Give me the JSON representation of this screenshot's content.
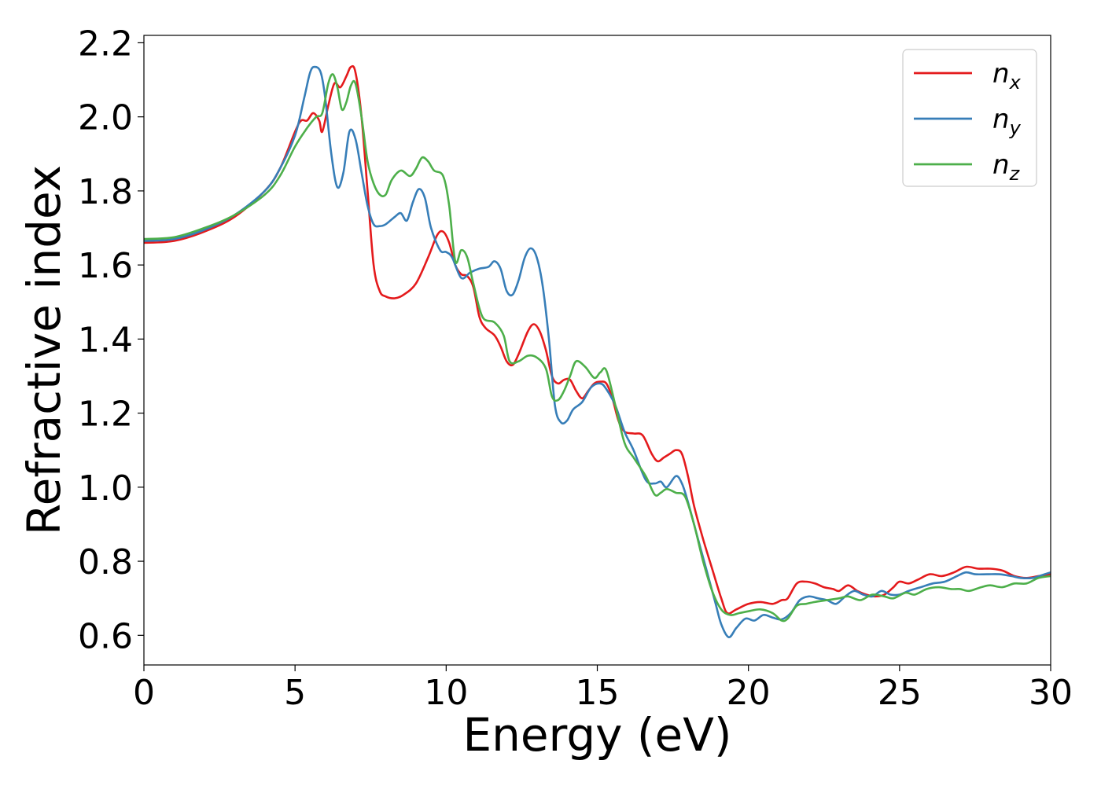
{
  "chart_data": {
    "type": "line",
    "title": "",
    "xlabel": "Energy (eV)",
    "ylabel": "Refractive index",
    "xlim": [
      0,
      30
    ],
    "ylim": [
      0.52,
      2.22
    ],
    "xticks": [
      0,
      5,
      10,
      15,
      20,
      25,
      30
    ],
    "xtick_labels": [
      "0",
      "5",
      "10",
      "15",
      "20",
      "25",
      "30"
    ],
    "yticks": [
      0.6,
      0.8,
      1.0,
      1.2,
      1.4,
      1.6,
      1.8,
      2.0,
      2.2
    ],
    "ytick_labels": [
      "0.6",
      "0.8",
      "1.0",
      "1.2",
      "1.4",
      "1.6",
      "1.8",
      "2.0",
      "2.2"
    ],
    "grid": false,
    "legend_position": "top-right",
    "series": [
      {
        "name": "n_x",
        "label_base": "n",
        "label_sub": "x",
        "color": "#e41a1c",
        "points": [
          [
            0,
            1.66
          ],
          [
            1,
            1.665
          ],
          [
            2,
            1.69
          ],
          [
            3,
            1.73
          ],
          [
            4,
            1.8
          ],
          [
            4.5,
            1.86
          ],
          [
            5,
            1.96
          ],
          [
            5.2,
            1.99
          ],
          [
            5.4,
            1.99
          ],
          [
            5.6,
            2.01
          ],
          [
            5.8,
            1.99
          ],
          [
            5.9,
            1.96
          ],
          [
            6.1,
            2.03
          ],
          [
            6.3,
            2.09
          ],
          [
            6.5,
            2.08
          ],
          [
            6.7,
            2.11
          ],
          [
            6.85,
            2.135
          ],
          [
            7,
            2.12
          ],
          [
            7.2,
            2.0
          ],
          [
            7.4,
            1.8
          ],
          [
            7.6,
            1.6
          ],
          [
            7.8,
            1.53
          ],
          [
            8.0,
            1.515
          ],
          [
            8.3,
            1.51
          ],
          [
            8.6,
            1.52
          ],
          [
            9.0,
            1.55
          ],
          [
            9.4,
            1.62
          ],
          [
            9.7,
            1.68
          ],
          [
            9.9,
            1.69
          ],
          [
            10.1,
            1.66
          ],
          [
            10.3,
            1.6
          ],
          [
            10.5,
            1.575
          ],
          [
            10.7,
            1.57
          ],
          [
            10.9,
            1.54
          ],
          [
            11.1,
            1.46
          ],
          [
            11.3,
            1.43
          ],
          [
            11.6,
            1.41
          ],
          [
            11.8,
            1.38
          ],
          [
            12.0,
            1.34
          ],
          [
            12.2,
            1.33
          ],
          [
            12.4,
            1.36
          ],
          [
            12.7,
            1.42
          ],
          [
            12.9,
            1.44
          ],
          [
            13.1,
            1.42
          ],
          [
            13.3,
            1.37
          ],
          [
            13.5,
            1.3
          ],
          [
            13.7,
            1.28
          ],
          [
            13.9,
            1.29
          ],
          [
            14.1,
            1.29
          ],
          [
            14.3,
            1.26
          ],
          [
            14.5,
            1.24
          ],
          [
            14.7,
            1.26
          ],
          [
            14.9,
            1.28
          ],
          [
            15.1,
            1.285
          ],
          [
            15.3,
            1.28
          ],
          [
            15.5,
            1.24
          ],
          [
            15.7,
            1.18
          ],
          [
            15.9,
            1.15
          ],
          [
            16.2,
            1.145
          ],
          [
            16.5,
            1.14
          ],
          [
            16.8,
            1.09
          ],
          [
            17.0,
            1.07
          ],
          [
            17.2,
            1.08
          ],
          [
            17.4,
            1.09
          ],
          [
            17.6,
            1.1
          ],
          [
            17.8,
            1.09
          ],
          [
            18.0,
            1.03
          ],
          [
            18.2,
            0.95
          ],
          [
            18.5,
            0.86
          ],
          [
            18.8,
            0.78
          ],
          [
            19.1,
            0.7
          ],
          [
            19.3,
            0.66
          ],
          [
            19.6,
            0.67
          ],
          [
            20.0,
            0.685
          ],
          [
            20.4,
            0.69
          ],
          [
            20.8,
            0.685
          ],
          [
            21.1,
            0.695
          ],
          [
            21.3,
            0.7
          ],
          [
            21.6,
            0.74
          ],
          [
            21.9,
            0.745
          ],
          [
            22.2,
            0.74
          ],
          [
            22.5,
            0.73
          ],
          [
            22.8,
            0.725
          ],
          [
            23.0,
            0.72
          ],
          [
            23.3,
            0.735
          ],
          [
            23.6,
            0.72
          ],
          [
            23.9,
            0.71
          ],
          [
            24.2,
            0.705
          ],
          [
            24.5,
            0.71
          ],
          [
            24.8,
            0.73
          ],
          [
            25.0,
            0.745
          ],
          [
            25.3,
            0.74
          ],
          [
            25.6,
            0.75
          ],
          [
            26.0,
            0.765
          ],
          [
            26.4,
            0.76
          ],
          [
            26.8,
            0.77
          ],
          [
            27.2,
            0.785
          ],
          [
            27.6,
            0.78
          ],
          [
            28.0,
            0.78
          ],
          [
            28.4,
            0.775
          ],
          [
            28.8,
            0.76
          ],
          [
            29.2,
            0.755
          ],
          [
            29.6,
            0.76
          ],
          [
            30,
            0.765
          ]
        ]
      },
      {
        "name": "n_y",
        "label_base": "n",
        "label_sub": "y",
        "color": "#377eb8",
        "points": [
          [
            0,
            1.665
          ],
          [
            1,
            1.67
          ],
          [
            2,
            1.695
          ],
          [
            3,
            1.735
          ],
          [
            4,
            1.8
          ],
          [
            4.5,
            1.86
          ],
          [
            5,
            1.95
          ],
          [
            5.3,
            2.05
          ],
          [
            5.5,
            2.12
          ],
          [
            5.65,
            2.135
          ],
          [
            5.85,
            2.12
          ],
          [
            6.0,
            2.05
          ],
          [
            6.2,
            1.9
          ],
          [
            6.4,
            1.81
          ],
          [
            6.6,
            1.85
          ],
          [
            6.8,
            1.96
          ],
          [
            7.0,
            1.94
          ],
          [
            7.2,
            1.85
          ],
          [
            7.4,
            1.76
          ],
          [
            7.6,
            1.71
          ],
          [
            7.8,
            1.705
          ],
          [
            8.0,
            1.71
          ],
          [
            8.3,
            1.73
          ],
          [
            8.5,
            1.74
          ],
          [
            8.7,
            1.72
          ],
          [
            8.9,
            1.77
          ],
          [
            9.1,
            1.805
          ],
          [
            9.3,
            1.78
          ],
          [
            9.5,
            1.7
          ],
          [
            9.8,
            1.64
          ],
          [
            10.0,
            1.635
          ],
          [
            10.2,
            1.62
          ],
          [
            10.5,
            1.565
          ],
          [
            10.8,
            1.58
          ],
          [
            11.1,
            1.59
          ],
          [
            11.4,
            1.595
          ],
          [
            11.6,
            1.61
          ],
          [
            11.8,
            1.59
          ],
          [
            12.0,
            1.53
          ],
          [
            12.2,
            1.52
          ],
          [
            12.4,
            1.56
          ],
          [
            12.6,
            1.62
          ],
          [
            12.8,
            1.645
          ],
          [
            13.0,
            1.62
          ],
          [
            13.2,
            1.54
          ],
          [
            13.4,
            1.4
          ],
          [
            13.6,
            1.22
          ],
          [
            13.8,
            1.175
          ],
          [
            14.0,
            1.18
          ],
          [
            14.2,
            1.21
          ],
          [
            14.5,
            1.23
          ],
          [
            14.8,
            1.27
          ],
          [
            15.1,
            1.28
          ],
          [
            15.3,
            1.265
          ],
          [
            15.6,
            1.22
          ],
          [
            15.9,
            1.15
          ],
          [
            16.2,
            1.1
          ],
          [
            16.6,
            1.02
          ],
          [
            16.9,
            1.01
          ],
          [
            17.1,
            1.015
          ],
          [
            17.3,
            1.0
          ],
          [
            17.6,
            1.03
          ],
          [
            17.8,
            1.01
          ],
          [
            18.0,
            0.96
          ],
          [
            18.3,
            0.87
          ],
          [
            18.6,
            0.78
          ],
          [
            18.9,
            0.69
          ],
          [
            19.1,
            0.63
          ],
          [
            19.35,
            0.595
          ],
          [
            19.6,
            0.62
          ],
          [
            19.9,
            0.645
          ],
          [
            20.2,
            0.64
          ],
          [
            20.5,
            0.655
          ],
          [
            20.8,
            0.648
          ],
          [
            21.1,
            0.643
          ],
          [
            21.4,
            0.66
          ],
          [
            21.7,
            0.695
          ],
          [
            22.0,
            0.705
          ],
          [
            22.3,
            0.7
          ],
          [
            22.6,
            0.695
          ],
          [
            22.9,
            0.685
          ],
          [
            23.2,
            0.705
          ],
          [
            23.5,
            0.72
          ],
          [
            23.8,
            0.71
          ],
          [
            24.1,
            0.705
          ],
          [
            24.4,
            0.72
          ],
          [
            24.7,
            0.71
          ],
          [
            25.0,
            0.71
          ],
          [
            25.3,
            0.72
          ],
          [
            25.7,
            0.73
          ],
          [
            26.1,
            0.74
          ],
          [
            26.5,
            0.745
          ],
          [
            26.9,
            0.76
          ],
          [
            27.2,
            0.77
          ],
          [
            27.5,
            0.765
          ],
          [
            27.9,
            0.765
          ],
          [
            28.3,
            0.765
          ],
          [
            28.7,
            0.76
          ],
          [
            29.0,
            0.755
          ],
          [
            29.4,
            0.755
          ],
          [
            29.8,
            0.765
          ],
          [
            30,
            0.77
          ]
        ]
      },
      {
        "name": "n_z",
        "label_base": "n",
        "label_sub": "z",
        "color": "#4daf4a",
        "points": [
          [
            0,
            1.67
          ],
          [
            1,
            1.675
          ],
          [
            2,
            1.7
          ],
          [
            3,
            1.735
          ],
          [
            4,
            1.79
          ],
          [
            4.5,
            1.84
          ],
          [
            5,
            1.92
          ],
          [
            5.4,
            1.97
          ],
          [
            5.7,
            2.0
          ],
          [
            5.9,
            2.01
          ],
          [
            6.1,
            2.09
          ],
          [
            6.25,
            2.115
          ],
          [
            6.4,
            2.08
          ],
          [
            6.55,
            2.02
          ],
          [
            6.7,
            2.04
          ],
          [
            6.85,
            2.085
          ],
          [
            7.0,
            2.09
          ],
          [
            7.2,
            2.0
          ],
          [
            7.4,
            1.88
          ],
          [
            7.6,
            1.82
          ],
          [
            7.8,
            1.79
          ],
          [
            8.0,
            1.79
          ],
          [
            8.2,
            1.83
          ],
          [
            8.5,
            1.855
          ],
          [
            8.8,
            1.84
          ],
          [
            9.0,
            1.86
          ],
          [
            9.2,
            1.89
          ],
          [
            9.4,
            1.88
          ],
          [
            9.6,
            1.855
          ],
          [
            9.9,
            1.84
          ],
          [
            10.1,
            1.76
          ],
          [
            10.3,
            1.61
          ],
          [
            10.5,
            1.64
          ],
          [
            10.7,
            1.62
          ],
          [
            10.9,
            1.55
          ],
          [
            11.2,
            1.46
          ],
          [
            11.6,
            1.445
          ],
          [
            11.9,
            1.41
          ],
          [
            12.1,
            1.34
          ],
          [
            12.4,
            1.34
          ],
          [
            12.7,
            1.355
          ],
          [
            13.0,
            1.35
          ],
          [
            13.3,
            1.32
          ],
          [
            13.5,
            1.245
          ],
          [
            13.7,
            1.235
          ],
          [
            13.9,
            1.26
          ],
          [
            14.1,
            1.3
          ],
          [
            14.3,
            1.34
          ],
          [
            14.6,
            1.325
          ],
          [
            14.9,
            1.295
          ],
          [
            15.1,
            1.31
          ],
          [
            15.3,
            1.315
          ],
          [
            15.6,
            1.22
          ],
          [
            15.9,
            1.12
          ],
          [
            16.2,
            1.08
          ],
          [
            16.6,
            1.03
          ],
          [
            16.9,
            0.98
          ],
          [
            17.1,
            0.985
          ],
          [
            17.3,
            0.995
          ],
          [
            17.6,
            0.985
          ],
          [
            17.9,
            0.975
          ],
          [
            18.2,
            0.9
          ],
          [
            18.5,
            0.8
          ],
          [
            18.8,
            0.72
          ],
          [
            19.1,
            0.67
          ],
          [
            19.4,
            0.655
          ],
          [
            19.7,
            0.66
          ],
          [
            20.0,
            0.665
          ],
          [
            20.4,
            0.67
          ],
          [
            20.8,
            0.66
          ],
          [
            21.1,
            0.64
          ],
          [
            21.3,
            0.645
          ],
          [
            21.6,
            0.68
          ],
          [
            21.9,
            0.685
          ],
          [
            22.2,
            0.69
          ],
          [
            22.6,
            0.695
          ],
          [
            23.0,
            0.7
          ],
          [
            23.3,
            0.705
          ],
          [
            23.7,
            0.695
          ],
          [
            24.1,
            0.71
          ],
          [
            24.5,
            0.705
          ],
          [
            24.8,
            0.7
          ],
          [
            25.2,
            0.715
          ],
          [
            25.5,
            0.71
          ],
          [
            25.9,
            0.725
          ],
          [
            26.3,
            0.73
          ],
          [
            26.7,
            0.725
          ],
          [
            27.0,
            0.725
          ],
          [
            27.3,
            0.72
          ],
          [
            27.7,
            0.73
          ],
          [
            28.0,
            0.735
          ],
          [
            28.4,
            0.73
          ],
          [
            28.8,
            0.74
          ],
          [
            29.2,
            0.74
          ],
          [
            29.6,
            0.755
          ],
          [
            30,
            0.76
          ]
        ]
      }
    ]
  }
}
